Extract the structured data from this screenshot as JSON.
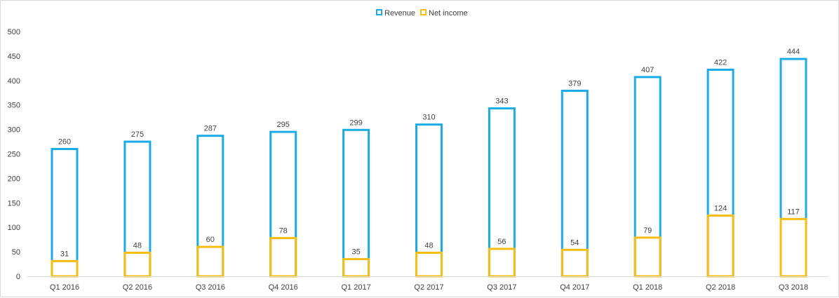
{
  "chart_data": {
    "type": "bar",
    "categories": [
      "Q1 2016",
      "Q2 2016",
      "Q3 2016",
      "Q4 2016",
      "Q1 2017",
      "Q2 2017",
      "Q3 2017",
      "Q4 2017",
      "Q1 2018",
      "Q2 2018",
      "Q3 2018"
    ],
    "series": [
      {
        "name": "Revenue",
        "values": [
          260,
          275,
          287,
          295,
          299,
          310,
          343,
          379,
          407,
          422,
          444
        ],
        "color": "#1aace6"
      },
      {
        "name": "Net income",
        "values": [
          31,
          48,
          60,
          78,
          35,
          48,
          56,
          54,
          79,
          124,
          117
        ],
        "color": "#f5be12"
      }
    ],
    "bar_style": "outlined, overlapping",
    "title": "",
    "xlabel": "",
    "ylabel": "",
    "ylim": [
      0,
      500
    ],
    "yticks": [
      0,
      50,
      100,
      150,
      200,
      250,
      300,
      350,
      400,
      450,
      500
    ],
    "grid": false,
    "legend": "top-center",
    "data_labels": true
  }
}
